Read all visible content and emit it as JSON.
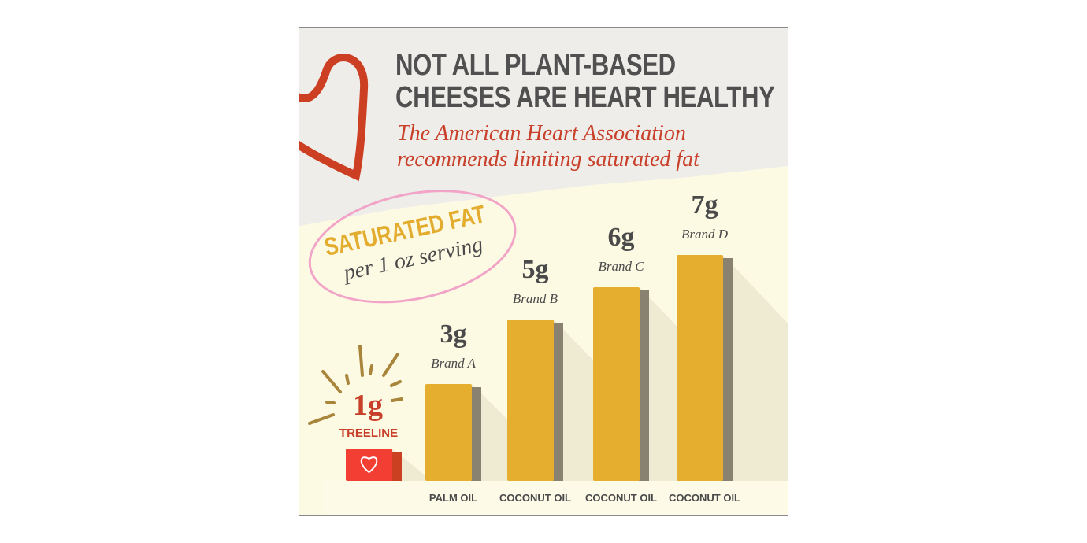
{
  "title_lines": [
    "NOT ALL PLANT-BASED",
    "CHEESES ARE HEART HEALTHY"
  ],
  "subtitle_lines": [
    "The American Heart Association",
    "recommends limiting saturated fat"
  ],
  "badge": {
    "line1": "SATURATED FAT",
    "line2": "per 1 oz serving"
  },
  "colors": {
    "bar": "#e5ae2e",
    "bar_side": "#8a8270",
    "highlight": "#f23e33",
    "highlight_side": "#cb4020",
    "title": "#505050",
    "accent": "#c8402a",
    "background": "#fdfae4"
  },
  "chart_data": {
    "type": "bar",
    "categories": [
      "TREELINE",
      "Brand A",
      "Brand B",
      "Brand C",
      "Brand D"
    ],
    "values": [
      1,
      3,
      5,
      6,
      7
    ],
    "value_labels": [
      "1g",
      "3g",
      "5g",
      "6g",
      "7g"
    ],
    "oil_labels": [
      "",
      "PALM OIL",
      "COCONUT OIL",
      "COCONUT OIL",
      "COCONUT OIL"
    ],
    "unit": "g",
    "highlight": "TREELINE",
    "grid": false,
    "ylim": [
      0,
      7
    ]
  }
}
